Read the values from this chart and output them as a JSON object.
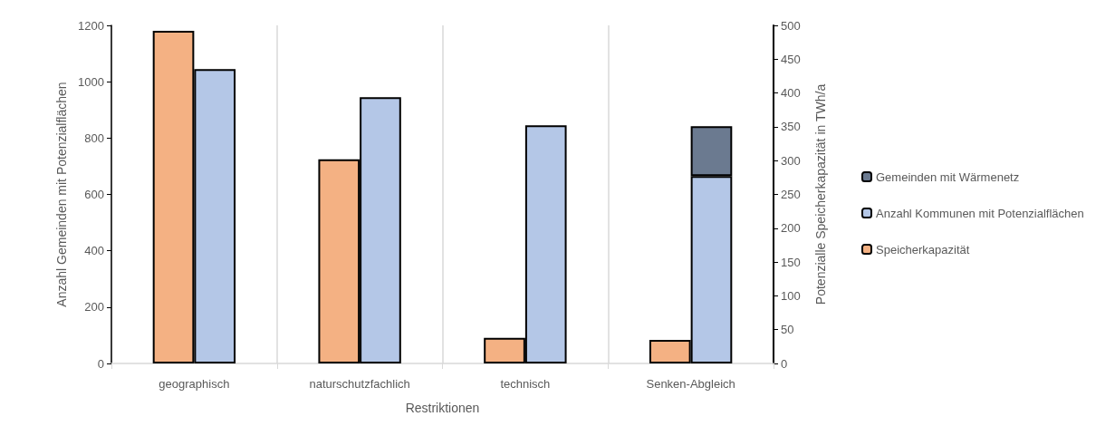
{
  "chart_data": {
    "type": "bar",
    "xlabel": "Restriktionen",
    "ylabel": "Anzahl Gemeinden mit Potenzialflächen",
    "y2label": "Potenzialle Speicherkapazität in TWh/a",
    "categories": [
      "geographisch",
      "naturschutzfachlich",
      "technisch",
      "Senken-Abgleich"
    ],
    "series": [
      {
        "name": "Speicherkapazität",
        "color": "#f4b183",
        "axis": "y2",
        "values": [
          492,
          302,
          38,
          35
        ]
      },
      {
        "name": "Anzahl Kommunen mit Potenzialflächen",
        "color": "#b4c7e7",
        "values": [
          1045,
          945,
          845,
          665
        ]
      },
      {
        "name": "Gemeinden mit Wärmenetz",
        "color": "#6b7a90",
        "values": [
          null,
          null,
          null,
          177
        ]
      }
    ],
    "ylim": [
      0,
      1200
    ],
    "yticks": [
      0,
      200,
      400,
      600,
      800,
      1000,
      1200
    ],
    "y2lim": [
      0,
      500
    ],
    "y2ticks": [
      0,
      50,
      100,
      150,
      200,
      250,
      300,
      350,
      400,
      450,
      500
    ],
    "stacked": true,
    "grid": "x",
    "legend": "right"
  }
}
